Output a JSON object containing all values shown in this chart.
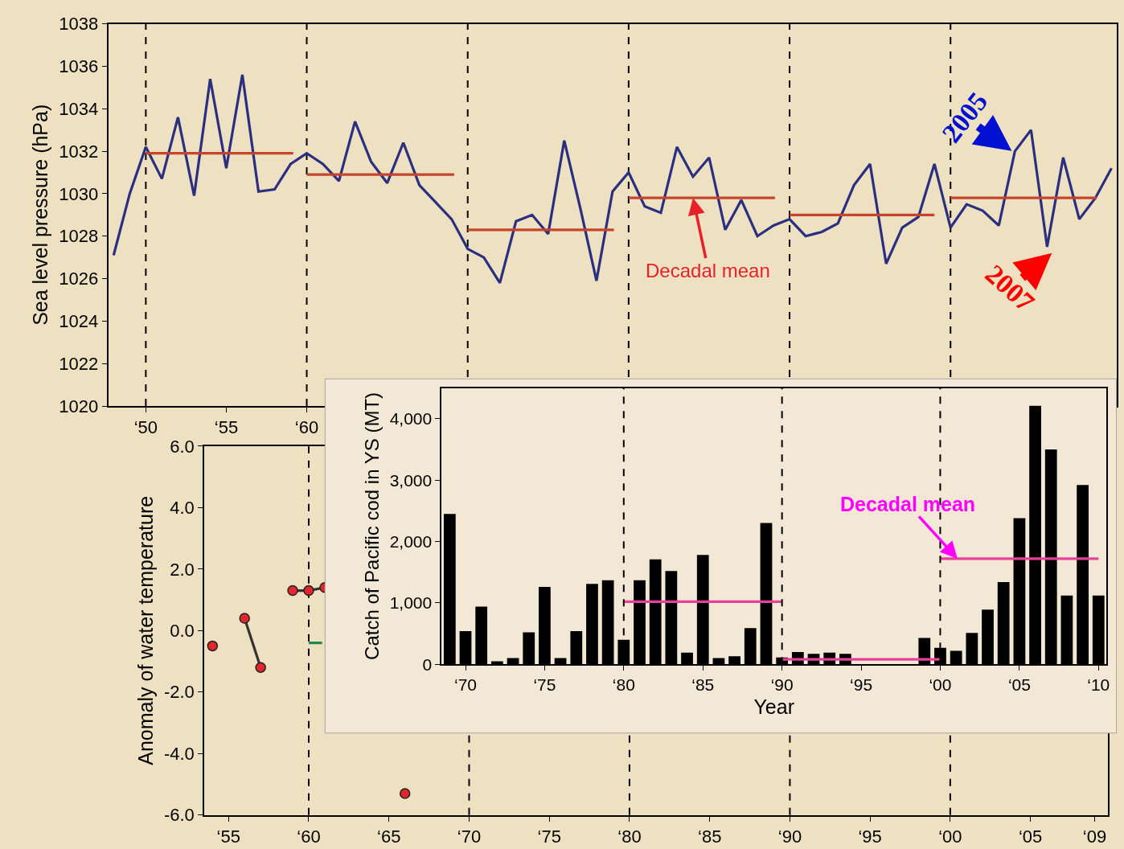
{
  "chart_data": [
    {
      "type": "line",
      "ylabel": "Sea level pressure (hPa)",
      "x": [
        "1948",
        "1949",
        "1950",
        "1951",
        "1952",
        "1953",
        "1954",
        "1955",
        "1956",
        "1957",
        "1958",
        "1959",
        "1960",
        "1961",
        "1962",
        "1963",
        "1964",
        "1965",
        "1966",
        "1967",
        "1968",
        "1969",
        "1970",
        "1971",
        "1972",
        "1973",
        "1974",
        "1975",
        "1976",
        "1977",
        "1978",
        "1979",
        "1980",
        "1981",
        "1982",
        "1983",
        "1984",
        "1985",
        "1986",
        "1987",
        "1988",
        "1989",
        "1990",
        "1991",
        "1992",
        "1993",
        "1994",
        "1995",
        "1996",
        "1997",
        "1998",
        "1999",
        "2000",
        "2001",
        "2002",
        "2003",
        "2004",
        "2005",
        "2006",
        "2007",
        "2008",
        "2009",
        "2010"
      ],
      "series": [
        {
          "color": "#2a2f80",
          "values": [
            1027.1,
            1030.0,
            1032.2,
            1030.7,
            1033.6,
            1029.9,
            1035.4,
            1031.2,
            1035.6,
            1030.1,
            1030.2,
            1031.4,
            1031.9,
            1031.4,
            1030.6,
            1033.4,
            1031.5,
            1030.5,
            1032.4,
            1030.4,
            1029.6,
            1028.8,
            1027.4,
            1027.0,
            1025.8,
            1028.7,
            1029.0,
            1028.1,
            1032.5,
            1029.3,
            1025.9,
            1030.1,
            1031.0,
            1029.4,
            1029.1,
            1032.2,
            1030.8,
            1031.7,
            1028.3,
            1029.7,
            1028.0,
            1028.5,
            1028.8,
            1028.0,
            1028.2,
            1028.6,
            1030.4,
            1031.4,
            1026.7,
            1028.4,
            1028.9,
            1031.4,
            1028.4,
            1029.5,
            1029.2,
            1028.5,
            1032.0,
            1033.0,
            1027.5,
            1031.7,
            1028.8,
            1029.8,
            1031.2
          ]
        },
        {
          "type": "line",
          "color": "#c4452b",
          "x": [
            "1950",
            "1959-03"
          ],
          "values": [
            1031.9,
            1031.9
          ]
        },
        {
          "type": "line",
          "color": "#c4452b",
          "x": [
            "1960",
            "1969-03"
          ],
          "values": [
            1030.9,
            1030.9
          ]
        },
        {
          "type": "line",
          "color": "#c4452b",
          "x": [
            "1970",
            "1979-02"
          ],
          "values": [
            1028.3,
            1028.3
          ]
        },
        {
          "type": "line",
          "color": "#c4452b",
          "x": [
            "1980",
            "1989-02"
          ],
          "values": [
            1029.8,
            1029.8
          ]
        },
        {
          "type": "line",
          "color": "#c4452b",
          "x": [
            "1990",
            "1999"
          ],
          "values": [
            1029.0,
            1029.0
          ]
        },
        {
          "type": "line",
          "color": "#c4452b",
          "x": [
            "2000",
            "2009-02"
          ],
          "values": [
            1029.8,
            1029.8
          ]
        }
      ],
      "xlim": [
        "1947-09",
        "2010-05"
      ],
      "ylim": [
        1020,
        1038
      ],
      "xticks": [
        {
          "value": "1950",
          "label": "‘50"
        },
        {
          "value": "1955",
          "label": "‘55"
        },
        {
          "value": "1960",
          "label": "‘60"
        }
      ],
      "yticks": [
        1020,
        1022,
        1024,
        1026,
        1028,
        1030,
        1032,
        1034,
        1036,
        1038
      ],
      "ref_lines": [
        {
          "axis": "x",
          "value": "1950",
          "color": "#000000",
          "line_style": "dashed"
        },
        {
          "axis": "x",
          "value": "1960",
          "color": "#000000",
          "line_style": "dashed"
        },
        {
          "axis": "x",
          "value": "1970",
          "color": "#000000",
          "line_style": "dashed"
        },
        {
          "axis": "x",
          "value": "1980",
          "color": "#000000",
          "line_style": "dashed"
        },
        {
          "axis": "x",
          "value": "1990",
          "color": "#000000",
          "line_style": "dashed"
        },
        {
          "axis": "x",
          "value": "2000",
          "color": "#000000",
          "line_style": "dashed"
        }
      ],
      "annotations": [
        {
          "text": "Decadal mean",
          "x": "1984",
          "y": 1029.8
        },
        "2005",
        "2007"
      ],
      "line_style": "solid"
    },
    {
      "type": "line",
      "ylabel": "Anomaly of water temperature",
      "x": [
        "1954",
        "1955",
        "1956",
        "1957",
        "1958",
        "1959",
        "1960",
        "1961",
        "1962",
        "1963",
        "1964",
        "1965",
        "1966"
      ],
      "series": [
        {
          "color": "#333333",
          "colors": [
            "#e3262b",
            "#e3262b",
            "#e3262b",
            "#e3262b",
            "#e3262b",
            "#e3262b",
            "#e3262b",
            "#e3262b",
            "#e3262b",
            "#e3262b",
            "#e3262b",
            "#e3262b",
            "#e3262b"
          ],
          "values": [
            -0.5,
            null,
            0.4,
            -1.2,
            null,
            1.3,
            1.3,
            1.4,
            null,
            null,
            null,
            null,
            -5.3
          ]
        },
        {
          "color": "#1e8a4a",
          "x": [
            "1960",
            "1960-11"
          ],
          "values": [
            -0.4,
            -0.4
          ],
          "marker": "none"
        }
      ],
      "xlim": [
        "1953-07",
        "2009-11"
      ],
      "ylim": [
        -6,
        6
      ],
      "xticks": [
        {
          "value": "1955",
          "label": "‘55"
        },
        {
          "value": "1960",
          "label": "‘60"
        },
        {
          "value": "1965",
          "label": "‘65"
        },
        {
          "value": "1970",
          "label": "‘70"
        },
        {
          "value": "1975",
          "label": "‘75"
        },
        {
          "value": "1980",
          "label": "‘80"
        },
        {
          "value": "1985",
          "label": "‘85"
        },
        {
          "value": "1990",
          "label": "‘90"
        },
        {
          "value": "1995",
          "label": "‘95"
        },
        {
          "value": "2000",
          "label": "‘00"
        },
        {
          "value": "2005",
          "label": "‘05"
        },
        {
          "value": "2009",
          "label": "‘09"
        }
      ],
      "yticks": [
        {
          "value": 6,
          "label": "6.0"
        },
        {
          "value": 4,
          "label": "4.0"
        },
        {
          "value": 2,
          "label": "2.0"
        },
        {
          "value": 0,
          "label": "0.0"
        },
        {
          "value": -2,
          "label": "-2.0"
        },
        {
          "value": -4,
          "label": "-4.0"
        },
        {
          "value": -6,
          "label": "-6.0"
        }
      ],
      "ref_lines": [
        {
          "axis": "x",
          "value": "1960",
          "color": "#000000",
          "line_style": "dashed"
        },
        {
          "axis": "x",
          "value": "1970",
          "color": "#000000",
          "line_style": "dashed"
        },
        {
          "axis": "x",
          "value": "1980",
          "color": "#000000",
          "line_style": "dashed"
        },
        {
          "axis": "x",
          "value": "1990",
          "color": "#000000",
          "line_style": "dashed"
        },
        {
          "axis": "x",
          "value": "2000",
          "color": "#000000",
          "line_style": "dashed"
        }
      ],
      "marker": "circle",
      "line_style": "solid"
    },
    {
      "type": "bar",
      "xlabel": "Year",
      "ylabel": "Catch of Pacific cod in YS (MT)",
      "x": [
        "1969",
        "1970",
        "1971",
        "1972",
        "1973",
        "1974",
        "1975",
        "1976",
        "1977",
        "1978",
        "1979",
        "1980",
        "1981",
        "1982",
        "1983",
        "1984",
        "1985",
        "1986",
        "1987",
        "1988",
        "1989",
        "1990",
        "1991",
        "1992",
        "1993",
        "1994",
        "1995",
        "1996",
        "1997",
        "1998",
        "1999",
        "2000",
        "2001",
        "2002",
        "2003",
        "2004",
        "2005",
        "2006",
        "2007",
        "2008",
        "2009",
        "2010"
      ],
      "series": [
        {
          "color": "#000000",
          "values": [
            2450,
            540,
            940,
            50,
            100,
            520,
            1260,
            100,
            540,
            1310,
            1370,
            400,
            1370,
            1710,
            1520,
            190,
            1780,
            100,
            130,
            590,
            2300,
            110,
            200,
            170,
            190,
            170,
            null,
            null,
            null,
            null,
            430,
            270,
            220,
            510,
            890,
            1340,
            2380,
            4210,
            3500,
            1120,
            2920,
            1120
          ]
        },
        {
          "type": "line",
          "color": "#e8409a",
          "x": [
            "1980",
            "1990"
          ],
          "values": [
            1020,
            1020
          ]
        },
        {
          "type": "line",
          "color": "#e8409a",
          "x": [
            "1990",
            "2000"
          ],
          "values": [
            80,
            80
          ]
        },
        {
          "type": "line",
          "color": "#e8409a",
          "x": [
            "2000",
            "2010"
          ],
          "values": [
            1720,
            1720
          ]
        }
      ],
      "xlim": [
        "1968-07",
        "2010-07"
      ],
      "ylim": [
        0,
        4500
      ],
      "xticks": [
        {
          "value": "1970",
          "label": "‘70"
        },
        {
          "value": "1975",
          "label": "‘75"
        },
        {
          "value": "1980",
          "label": "‘80"
        },
        {
          "value": "1985",
          "label": "‘85"
        },
        {
          "value": "1990",
          "label": "‘90"
        },
        {
          "value": "1995",
          "label": "‘95"
        },
        {
          "value": "2000",
          "label": "‘00"
        },
        {
          "value": "2005",
          "label": "‘05"
        },
        {
          "value": "2010",
          "label": "‘10"
        }
      ],
      "yticks": [
        0,
        {
          "value": 1000,
          "label": "1,000"
        },
        {
          "value": 2000,
          "label": "2,000"
        },
        {
          "value": 3000,
          "label": "3,000"
        },
        {
          "value": 4000,
          "label": "4,000"
        }
      ],
      "ref_lines": [
        {
          "axis": "x",
          "value": "1980",
          "color": "#000000",
          "line_style": "dashed"
        },
        {
          "axis": "x",
          "value": "1990",
          "color": "#000000",
          "line_style": "dashed"
        },
        {
          "axis": "x",
          "value": "2000",
          "color": "#000000",
          "line_style": "dashed"
        }
      ],
      "annotations": [
        {
          "text": "Decadal mean",
          "x": "2001-02",
          "y": 1720
        }
      ]
    }
  ]
}
